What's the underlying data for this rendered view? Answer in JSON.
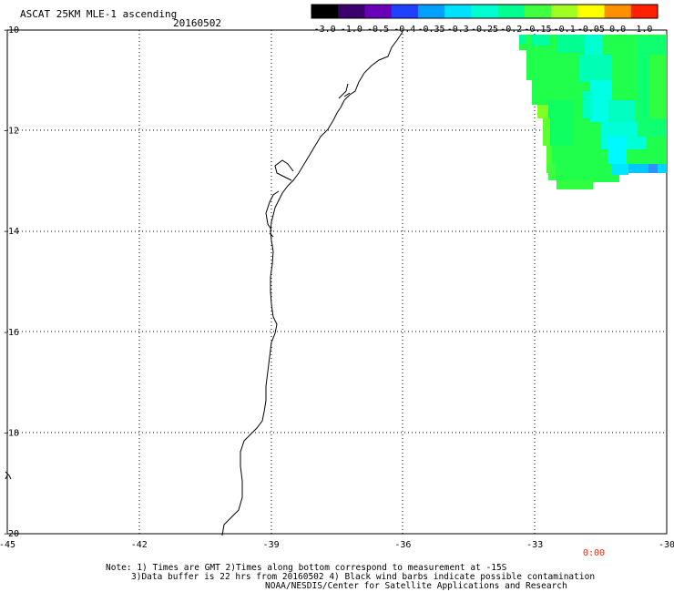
{
  "header": {
    "title": "ASCAT 25KM MLE-1 ascending",
    "date": "20160502"
  },
  "colorbar": {
    "labels": [
      "-3.0",
      "-1.0",
      "-0.5",
      "-0.4",
      "-0.35",
      "-0.3",
      "-0.25",
      "-0.2",
      "-0.15",
      "-0.1",
      "-0.05",
      "0.0",
      "1.0"
    ],
    "colors": [
      "#000000",
      "#3b006b",
      "#6a00b8",
      "#2040ff",
      "#00a0ff",
      "#00e0ff",
      "#00ffd0",
      "#00ff90",
      "#40ff40",
      "#a0ff20",
      "#ffff00",
      "#ff9000",
      "#ff2000"
    ]
  },
  "map": {
    "lon_ticks": [
      "-45",
      "-42",
      "-39",
      "-36",
      "-33",
      "-30"
    ],
    "lat_ticks": [
      "-10",
      "-12",
      "-14",
      "-16",
      "-18",
      "-20"
    ],
    "lon_range": [
      -45,
      -30
    ],
    "lat_range": [
      -20,
      -10
    ],
    "grid": "dotted",
    "time_label": "0:00",
    "time_label_color": "#ff2000"
  },
  "footer": {
    "line1": "Note: 1) Times are GMT 2)Times along bottom correspond to measurement at -15S",
    "line2": "3)Data buffer is 22 hrs from 20160502 4) Black wind barbs indicate possible contamination",
    "line3": "NOAA/NESDIS/Center for Satellite Applications and Research"
  }
}
